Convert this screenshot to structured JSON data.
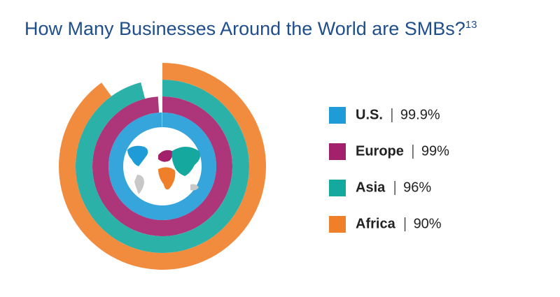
{
  "chart_data": {
    "type": "radial_bar",
    "title": "How Many Businesses Around the World are SMBs?",
    "title_superscript": "13",
    "rlim": [
      0,
      100
    ],
    "series": [
      {
        "name": "U.S.",
        "color": "#1f9bd7",
        "values": [
          99.9
        ],
        "value_labels": [
          "99.9%"
        ]
      },
      {
        "name": "Europe",
        "color": "#a3206a",
        "values": [
          99
        ],
        "value_labels": [
          "99%"
        ]
      },
      {
        "name": "Asia",
        "color": "#14a89e",
        "values": [
          96
        ],
        "value_labels": [
          "96%"
        ]
      },
      {
        "name": "Africa",
        "color": "#f07f2a",
        "values": [
          90
        ],
        "value_labels": [
          "90%"
        ]
      }
    ]
  }
}
